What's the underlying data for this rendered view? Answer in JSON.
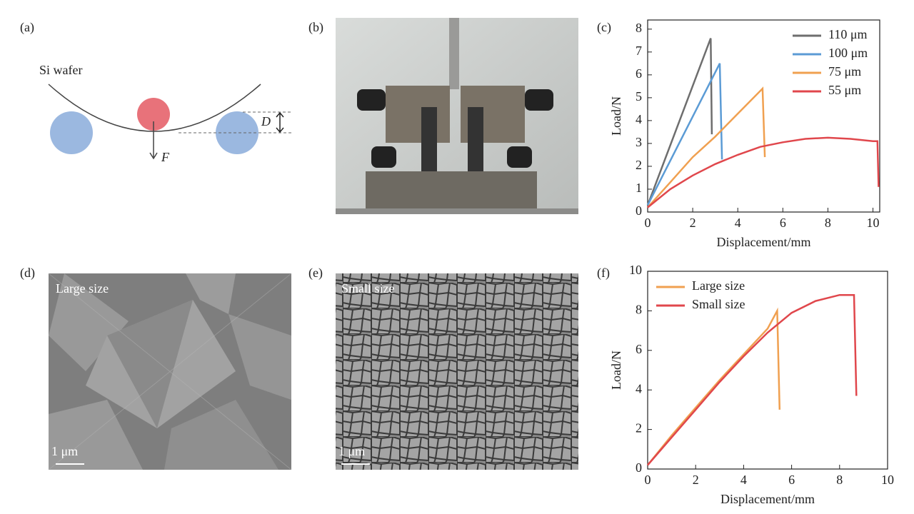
{
  "labels": [
    "(a)",
    "(b)",
    "(c)",
    "(d)",
    "(e)",
    "(f)"
  ],
  "diagram": {
    "wafer_label": "Si wafer",
    "force_label": "F",
    "deflection_label": "D"
  },
  "micrographs": [
    {
      "caption": "Large size",
      "scale_bar": "1 μm"
    },
    {
      "caption": "Small size",
      "scale_bar": "1 μm"
    }
  ],
  "chart_data": [
    {
      "type": "line",
      "xlabel": "Displacement/mm",
      "ylabel": "Load/N",
      "xlim": [
        0,
        10.3
      ],
      "ylim": [
        0,
        8.4
      ],
      "xticks": [
        0,
        2,
        4,
        6,
        8,
        10
      ],
      "yticks": [
        0,
        1,
        2,
        3,
        4,
        5,
        6,
        7,
        8
      ],
      "legend": "upper right",
      "series": [
        {
          "name": "110 μm",
          "color": "#6e6e6e",
          "x": [
            0,
            2.8,
            2.85
          ],
          "values": [
            0.3,
            7.6,
            3.4
          ]
        },
        {
          "name": "100 μm",
          "color": "#5b9bd5",
          "x": [
            0,
            3.2,
            3.3
          ],
          "values": [
            0.3,
            6.5,
            2.3
          ]
        },
        {
          "name": "75 μm",
          "color": "#f0a050",
          "x": [
            0,
            1,
            2,
            3,
            4,
            5.1,
            5.2
          ],
          "values": [
            0.2,
            1.3,
            2.4,
            3.3,
            4.3,
            5.4,
            2.4
          ]
        },
        {
          "name": "55 μm",
          "color": "#e0474c",
          "x": [
            0,
            1,
            2,
            3,
            4,
            5,
            6,
            7,
            8,
            9,
            10,
            10.2,
            10.25
          ],
          "values": [
            0.2,
            1.0,
            1.6,
            2.1,
            2.5,
            2.85,
            3.05,
            3.2,
            3.25,
            3.2,
            3.1,
            3.1,
            1.1
          ]
        }
      ]
    },
    {
      "type": "line",
      "xlabel": "Displacement/mm",
      "ylabel": "Load/N",
      "xlim": [
        0,
        10
      ],
      "ylim": [
        0,
        10
      ],
      "xticks": [
        0,
        2,
        4,
        6,
        8,
        10
      ],
      "yticks": [
        0,
        2,
        4,
        6,
        8,
        10
      ],
      "legend": "upper left",
      "series": [
        {
          "name": "Large size",
          "color": "#f0a050",
          "x": [
            0,
            1,
            2,
            3,
            4,
            5,
            5.4,
            5.5
          ],
          "values": [
            0.2,
            1.7,
            3.1,
            4.5,
            5.8,
            7.1,
            8.0,
            3.0
          ]
        },
        {
          "name": "Small size",
          "color": "#e0474c",
          "x": [
            0,
            1,
            2,
            3,
            4,
            5,
            6,
            7,
            8,
            8.6,
            8.7
          ],
          "values": [
            0.2,
            1.6,
            3.0,
            4.4,
            5.7,
            6.9,
            7.9,
            8.5,
            8.8,
            8.8,
            3.7
          ]
        }
      ]
    }
  ]
}
